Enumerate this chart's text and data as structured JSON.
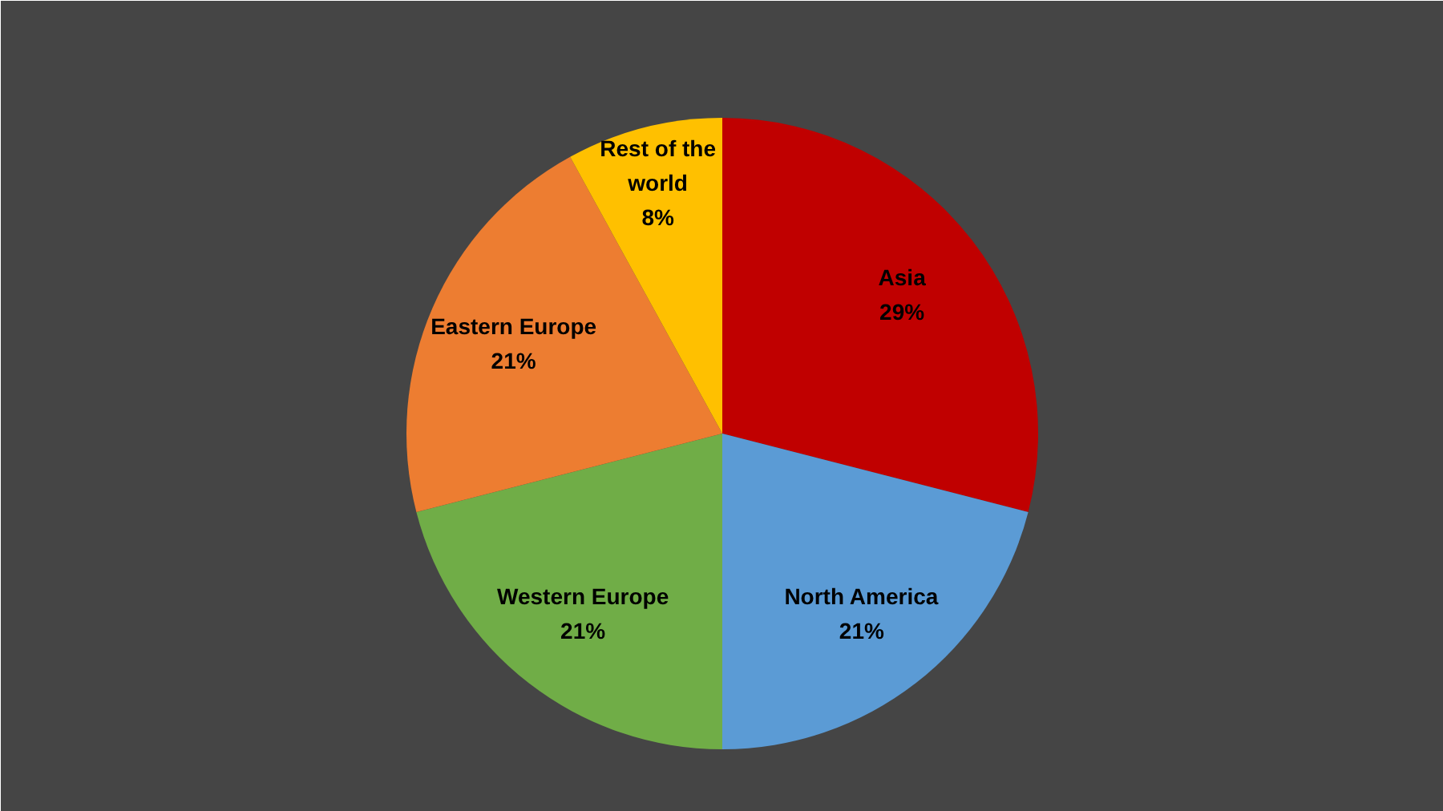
{
  "chart_data": {
    "type": "pie",
    "categories": [
      "Asia",
      "North America",
      "Western Europe",
      "Eastern Europe",
      "Rest of the world"
    ],
    "values": [
      29,
      21,
      21,
      21,
      8
    ],
    "colors": [
      "#c00000",
      "#5b9bd5",
      "#70ad47",
      "#ed7d31",
      "#ffc000"
    ],
    "value_labels": [
      "29%",
      "21%",
      "21%",
      "21%",
      "8%"
    ]
  }
}
